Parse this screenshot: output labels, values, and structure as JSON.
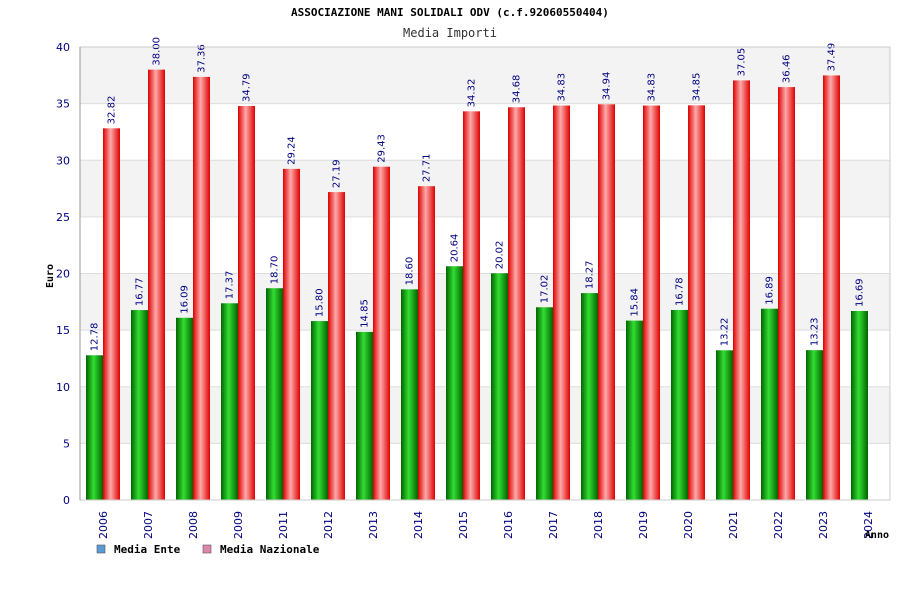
{
  "chart_data": {
    "type": "bar",
    "title": "ASSOCIAZIONE MANI SOLIDALI ODV (c.f.92060550404)",
    "subtitle": "Media Importi",
    "xlabel": "Anno",
    "ylabel": "Euro",
    "ylim": [
      0,
      40
    ],
    "yticks": [
      0,
      5,
      10,
      15,
      20,
      25,
      30,
      35,
      40
    ],
    "grid": true,
    "legend_position": "bottom-left",
    "categories": [
      "2006",
      "2007",
      "2008",
      "2009",
      "2011",
      "2012",
      "2013",
      "2014",
      "2015",
      "2016",
      "2017",
      "2018",
      "2019",
      "2020",
      "2021",
      "2022",
      "2023",
      "2024"
    ],
    "series": [
      {
        "name": "Media Ente",
        "color": "#00aa00",
        "legend_color": "#5b9bd5",
        "values": [
          12.78,
          16.77,
          16.09,
          17.37,
          18.7,
          15.8,
          14.85,
          18.6,
          20.64,
          20.02,
          17.02,
          18.27,
          15.84,
          16.78,
          13.22,
          16.89,
          13.23,
          16.69
        ],
        "labels": [
          "12.78",
          "16.77",
          "16.09",
          "17.37",
          "18.70",
          "15.80",
          "14.85",
          "18.60",
          "20.64",
          "20.02",
          "17.02",
          "18.27",
          "15.84",
          "16.78",
          "13.22",
          "16.89",
          "13.23",
          "16.69"
        ]
      },
      {
        "name": "Media Nazionale",
        "color": "#ee1111",
        "legend_color": "#dd88aa",
        "values": [
          32.82,
          38.0,
          37.36,
          34.79,
          29.24,
          27.19,
          29.43,
          27.71,
          34.32,
          34.68,
          34.83,
          34.94,
          34.83,
          34.85,
          37.05,
          36.46,
          37.49,
          null
        ],
        "labels": [
          "32.82",
          "38.00",
          "37.36",
          "34.79",
          "29.24",
          "27.19",
          "29.43",
          "27.71",
          "34.32",
          "34.68",
          "34.83",
          "34.94",
          "34.83",
          "34.85",
          "37.05",
          "36.46",
          "37.49",
          ""
        ]
      }
    ]
  }
}
